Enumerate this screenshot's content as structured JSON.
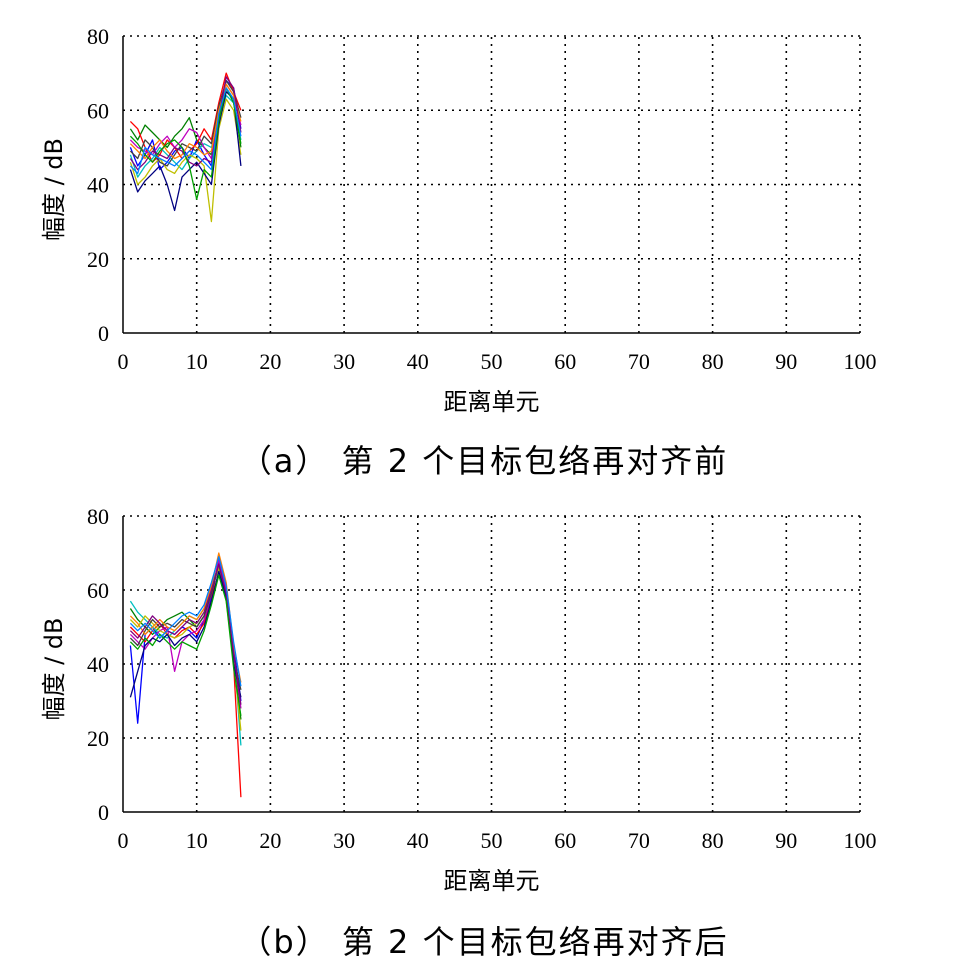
{
  "chart_data": [
    {
      "type": "line",
      "caption": "（a） 第 2 个目标包络再对齐前",
      "xlabel": "距离单元",
      "ylabel": "幅度 / dB",
      "xlim": [
        0,
        100
      ],
      "ylim": [
        0,
        80
      ],
      "xticks": [
        "0",
        "10",
        "20",
        "30",
        "40",
        "50",
        "60",
        "70",
        "80",
        "90",
        "100"
      ],
      "yticks": [
        "0",
        "20",
        "40",
        "60",
        "80"
      ],
      "grid": true,
      "x": [
        1,
        2,
        3,
        4,
        5,
        6,
        7,
        8,
        9,
        10,
        11,
        12,
        13,
        14,
        15,
        16
      ],
      "series": [
        {
          "color": "#0000ff",
          "values": [
            50,
            45,
            48,
            52,
            44,
            46,
            49,
            50,
            47,
            52,
            48,
            45,
            60,
            68,
            66,
            55
          ]
        },
        {
          "color": "#008000",
          "values": [
            55,
            52,
            56,
            54,
            52,
            50,
            53,
            55,
            58,
            52,
            50,
            48,
            58,
            66,
            63,
            50
          ]
        },
        {
          "color": "#ff0000",
          "values": [
            57,
            55,
            50,
            46,
            48,
            52,
            50,
            47,
            49,
            51,
            55,
            52,
            62,
            70,
            65,
            60
          ]
        },
        {
          "color": "#00bfbf",
          "values": [
            48,
            42,
            45,
            47,
            50,
            48,
            46,
            44,
            47,
            49,
            51,
            50,
            57,
            64,
            62,
            52
          ]
        },
        {
          "color": "#bf00bf",
          "values": [
            52,
            50,
            49,
            48,
            51,
            53,
            50,
            52,
            55,
            54,
            50,
            47,
            59,
            67,
            64,
            56
          ]
        },
        {
          "color": "#bfbf00",
          "values": [
            46,
            40,
            42,
            45,
            47,
            44,
            43,
            46,
            48,
            47,
            45,
            30,
            55,
            63,
            60,
            48
          ]
        },
        {
          "color": "#404040",
          "values": [
            49,
            47,
            52,
            50,
            46,
            45,
            48,
            51,
            50,
            49,
            53,
            51,
            61,
            68,
            65,
            58
          ]
        },
        {
          "color": "#000080",
          "values": [
            44,
            38,
            41,
            43,
            45,
            40,
            33,
            42,
            44,
            46,
            43,
            40,
            56,
            65,
            63,
            45
          ]
        },
        {
          "color": "#ff8000",
          "values": [
            51,
            49,
            47,
            50,
            52,
            49,
            47,
            48,
            51,
            50,
            48,
            49,
            60,
            67,
            64,
            57
          ]
        },
        {
          "color": "#800080",
          "values": [
            47,
            44,
            46,
            49,
            48,
            47,
            50,
            49,
            46,
            45,
            47,
            46,
            58,
            69,
            66,
            54
          ]
        },
        {
          "color": "#00a000",
          "values": [
            53,
            51,
            48,
            46,
            49,
            51,
            52,
            50,
            45,
            36,
            44,
            42,
            57,
            66,
            62,
            51
          ]
        },
        {
          "color": "#0080ff",
          "values": [
            45,
            43,
            50,
            48,
            47,
            46,
            45,
            47,
            49,
            48,
            46,
            44,
            59,
            66,
            63,
            53
          ]
        }
      ]
    },
    {
      "type": "line",
      "caption": "（b） 第 2 个目标包络再对齐后",
      "xlabel": "距离单元",
      "ylabel": "幅度 / dB",
      "xlim": [
        0,
        100
      ],
      "ylim": [
        0,
        80
      ],
      "xticks": [
        "0",
        "10",
        "20",
        "30",
        "40",
        "50",
        "60",
        "70",
        "80",
        "90",
        "100"
      ],
      "yticks": [
        "0",
        "20",
        "40",
        "60",
        "80"
      ],
      "grid": true,
      "x": [
        1,
        2,
        3,
        4,
        5,
        6,
        7,
        8,
        9,
        10,
        11,
        12,
        13,
        14,
        15,
        16
      ],
      "series": [
        {
          "color": "#0000ff",
          "values": [
            45,
            24,
            48,
            50,
            47,
            49,
            48,
            50,
            49,
            47,
            52,
            58,
            68,
            60,
            45,
            30
          ]
        },
        {
          "color": "#008000",
          "values": [
            55,
            52,
            50,
            48,
            50,
            52,
            53,
            54,
            52,
            50,
            53,
            60,
            66,
            58,
            42,
            25
          ]
        },
        {
          "color": "#ff0000",
          "values": [
            50,
            48,
            46,
            49,
            51,
            48,
            47,
            49,
            50,
            48,
            51,
            57,
            69,
            61,
            40,
            4
          ]
        },
        {
          "color": "#00bfbf",
          "values": [
            57,
            54,
            52,
            50,
            48,
            47,
            49,
            51,
            53,
            52,
            55,
            61,
            67,
            59,
            44,
            18
          ]
        },
        {
          "color": "#bf00bf",
          "values": [
            48,
            46,
            44,
            47,
            49,
            50,
            38,
            46,
            48,
            49,
            52,
            59,
            68,
            60,
            43,
            28
          ]
        },
        {
          "color": "#bfbf00",
          "values": [
            52,
            50,
            53,
            51,
            49,
            48,
            47,
            48,
            50,
            51,
            54,
            60,
            66,
            57,
            41,
            22
          ]
        },
        {
          "color": "#404040",
          "values": [
            47,
            45,
            49,
            52,
            50,
            51,
            50,
            52,
            51,
            50,
            53,
            59,
            67,
            58,
            42,
            33
          ]
        },
        {
          "color": "#000080",
          "values": [
            31,
            38,
            45,
            47,
            46,
            48,
            45,
            47,
            48,
            46,
            50,
            57,
            65,
            58,
            40,
            31
          ]
        },
        {
          "color": "#ff8000",
          "values": [
            53,
            51,
            48,
            50,
            52,
            50,
            49,
            51,
            53,
            52,
            55,
            61,
            70,
            62,
            45,
            35
          ]
        },
        {
          "color": "#800080",
          "values": [
            49,
            47,
            50,
            53,
            51,
            49,
            48,
            50,
            52,
            51,
            54,
            60,
            67,
            59,
            43,
            29
          ]
        },
        {
          "color": "#00a000",
          "values": [
            46,
            44,
            47,
            45,
            48,
            46,
            44,
            46,
            45,
            44,
            49,
            56,
            64,
            57,
            39,
            26
          ]
        },
        {
          "color": "#0080ff",
          "values": [
            51,
            49,
            51,
            49,
            47,
            49,
            51,
            53,
            54,
            53,
            56,
            62,
            69,
            61,
            46,
            34
          ]
        }
      ]
    }
  ]
}
